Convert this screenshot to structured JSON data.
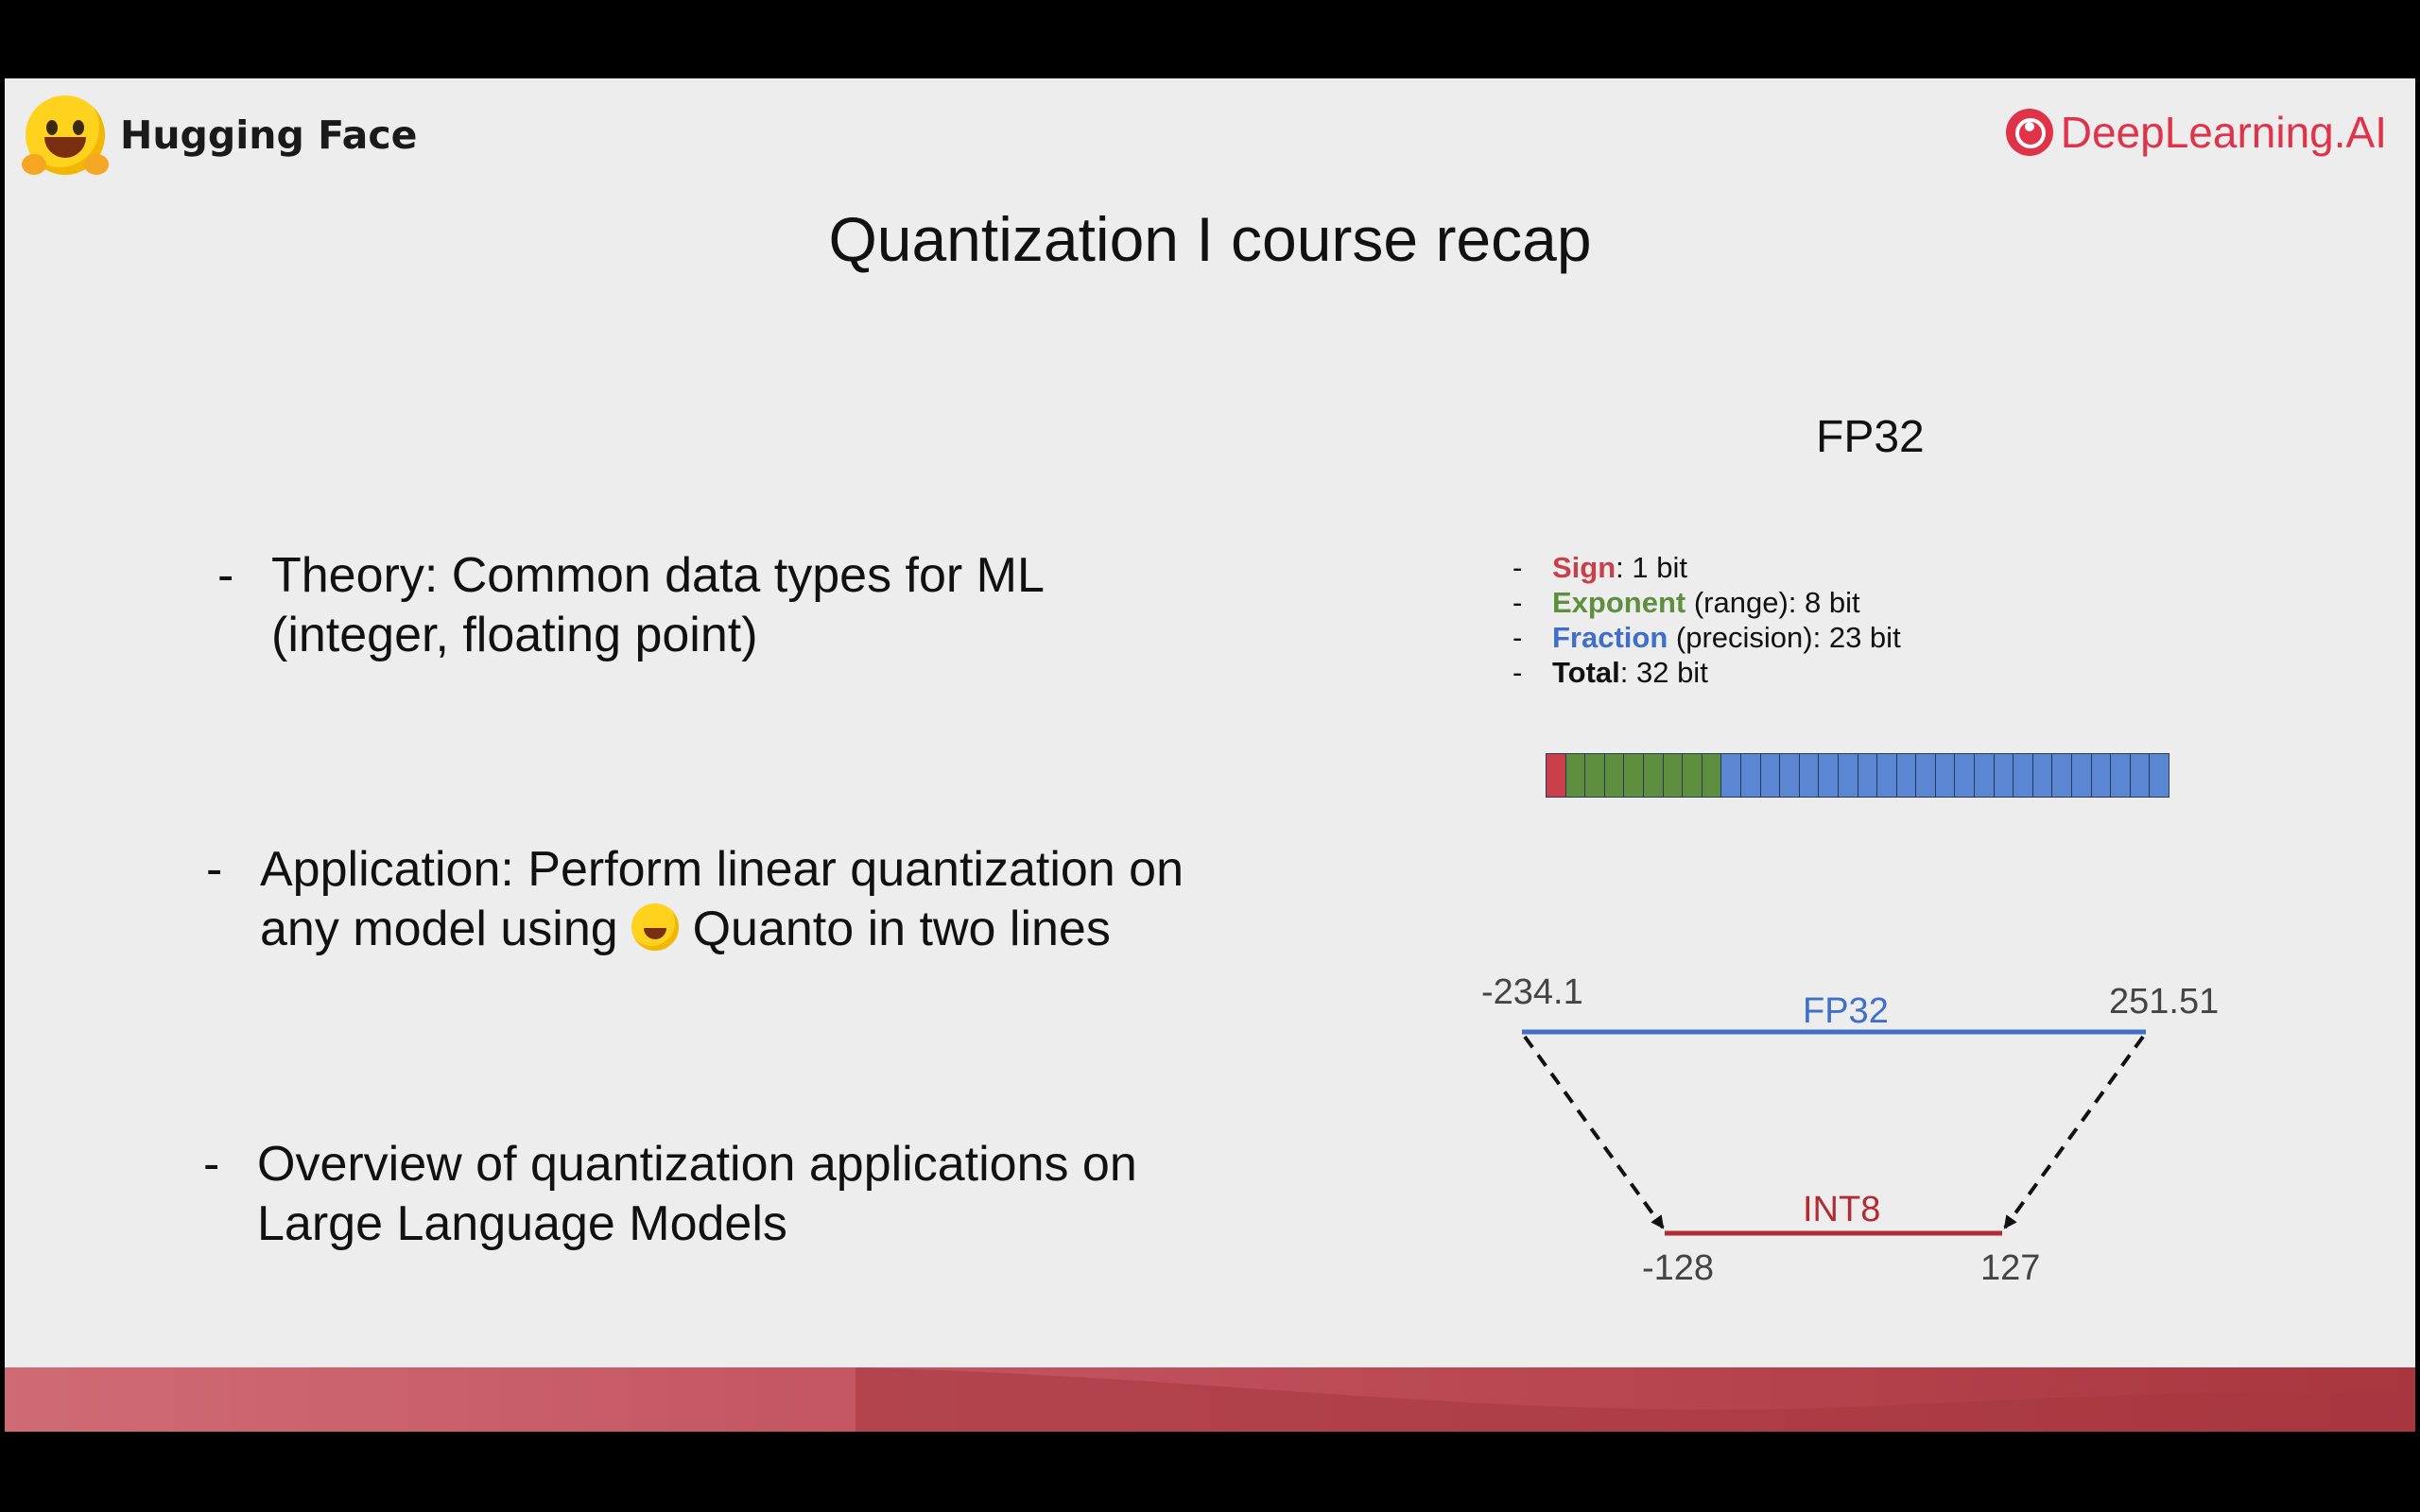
{
  "header": {
    "brand_left": "Hugging Face",
    "brand_left_icon": "hugging-face-emoji-icon",
    "brand_right": "DeepLearning.AI",
    "brand_right_icon": "deeplearning-ai-logo-icon"
  },
  "title": "Quantization I course recap",
  "bullets": [
    {
      "dash": "-",
      "lines": [
        "Theory: Common data types for ML",
        "(integer, floating point)"
      ]
    },
    {
      "dash": "-",
      "line1": "Application: Perform linear quantization on",
      "line2_pre": "any model using",
      "line2_post": "Quanto in two lines"
    },
    {
      "dash": "-",
      "lines": [
        "Overview of quantization applications on",
        "Large Language Models"
      ]
    }
  ],
  "fp32": {
    "title": "FP32",
    "specs": [
      {
        "name": "Sign",
        "rest": ": 1 bit",
        "color": "#c9404b"
      },
      {
        "name": "Exponent",
        "rest": " (range): 8 bit",
        "color": "#5e8f3e"
      },
      {
        "name": "Fraction",
        "rest": " (precision): 23 bit",
        "color": "#3f6fc8"
      },
      {
        "name": "Total",
        "rest": ": 32 bit",
        "color": "#111111"
      }
    ],
    "bit_counts": {
      "sign": 1,
      "exponent": 8,
      "fraction": 23
    },
    "bit_colors": {
      "sign": "#c9404b",
      "exponent": "#5e8f3e",
      "fraction": "#5a86d4"
    }
  },
  "mapping": {
    "fp32_label": "FP32",
    "fp32_min": "-234.1",
    "fp32_max": "251.51",
    "int8_label": "INT8",
    "int8_min": "-128",
    "int8_max": "127",
    "fp32_color": "#3f6fc8",
    "int8_color": "#b22b32"
  },
  "colors": {
    "background": "#ededed",
    "accent": "#e0334a",
    "footer": "#b43c46"
  }
}
